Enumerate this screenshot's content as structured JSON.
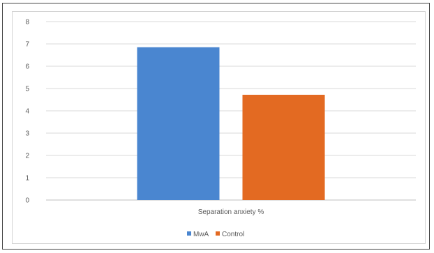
{
  "chart_data": {
    "type": "bar",
    "categories": [
      "Separation anxiety %"
    ],
    "series": [
      {
        "name": "MwA",
        "values": [
          6.85
        ],
        "color": "#4a86d0"
      },
      {
        "name": "Control",
        "values": [
          4.72
        ],
        "color": "#e36a22"
      }
    ],
    "yticks": [
      "0",
      "1",
      "2",
      "3",
      "4",
      "5",
      "6",
      "7",
      "8"
    ],
    "ylim": [
      0,
      8
    ],
    "grid": true,
    "legend": "bottom"
  }
}
